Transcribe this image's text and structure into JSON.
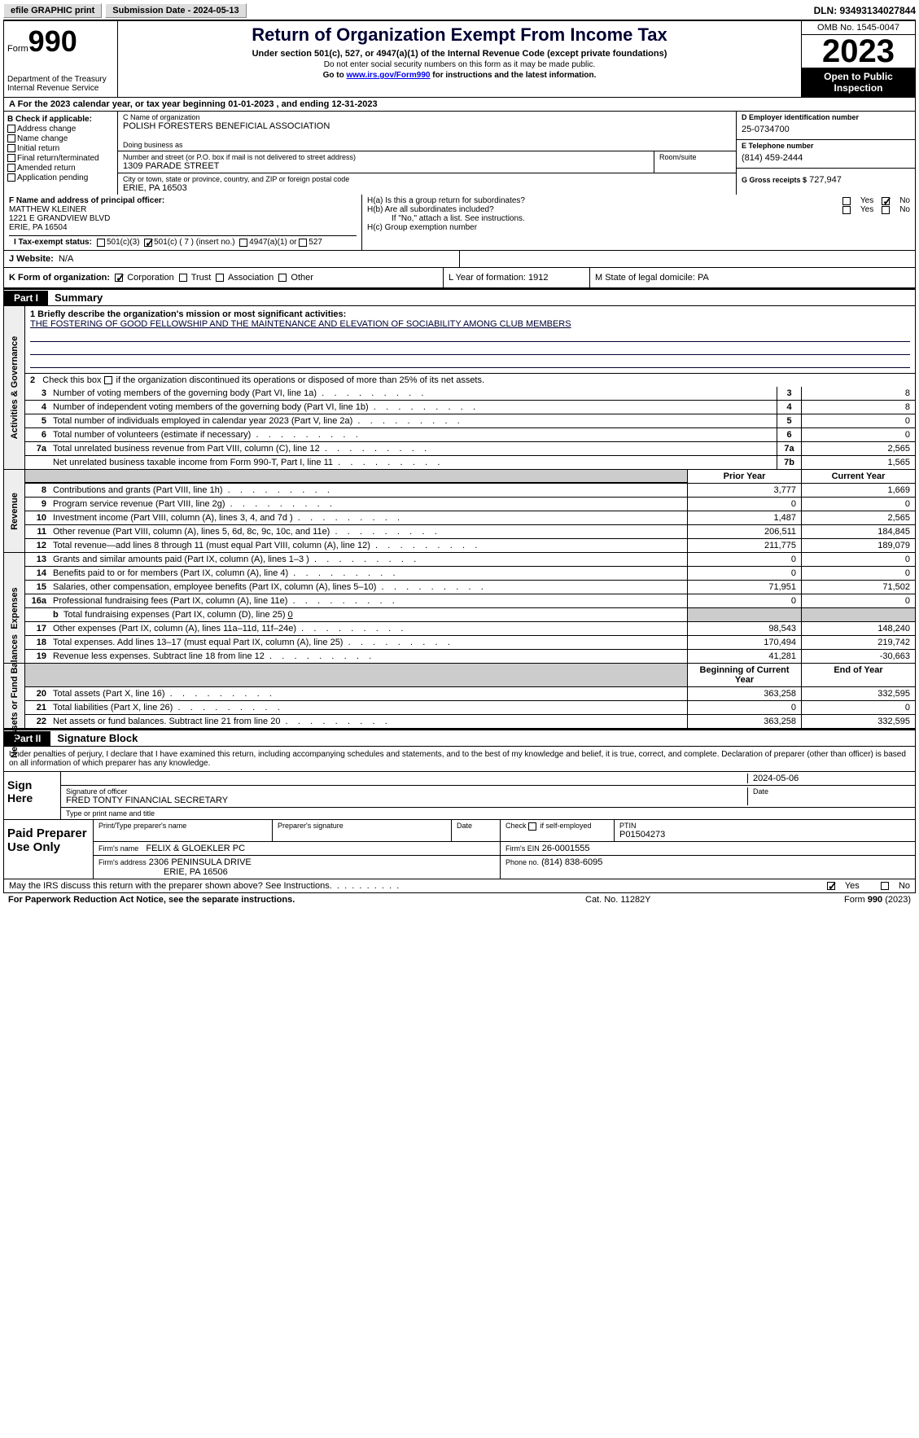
{
  "topbar": {
    "efile": "efile GRAPHIC print",
    "sub_date_label": "Submission Date - 2024-05-13",
    "dln": "DLN: 93493134027844"
  },
  "header": {
    "form_word": "Form",
    "form_no": "990",
    "dept": "Department of the Treasury\nInternal Revenue Service",
    "title": "Return of Organization Exempt From Income Tax",
    "sub": "Under section 501(c), 527, or 4947(a)(1) of the Internal Revenue Code (except private foundations)",
    "note1": "Do not enter social security numbers on this form as it may be made public.",
    "note2_pre": "Go to ",
    "note2_link": "www.irs.gov/Form990",
    "note2_post": " for instructions and the latest information.",
    "omb": "OMB No. 1545-0047",
    "year": "2023",
    "inspect": "Open to Public Inspection"
  },
  "row_a": "A For the 2023 calendar year, or tax year beginning 01-01-2023    , and ending 12-31-2023",
  "col_b": {
    "lbl": "B Check if applicable:",
    "items": [
      "Address change",
      "Name change",
      "Initial return",
      "Final return/terminated",
      "Amended return",
      "Application pending"
    ]
  },
  "col_c": {
    "name_lbl": "C Name of organization",
    "name": "POLISH FORESTERS BENEFICIAL ASSOCIATION",
    "dba_lbl": "Doing business as",
    "addr_lbl": "Number and street (or P.O. box if mail is not delivered to street address)",
    "addr": "1309 PARADE STREET",
    "room_lbl": "Room/suite",
    "city_lbl": "City or town, state or province, country, and ZIP or foreign postal code",
    "city": "ERIE, PA  16503"
  },
  "col_d": {
    "ein_lbl": "D Employer identification number",
    "ein": "25-0734700",
    "tel_lbl": "E Telephone number",
    "tel": "(814) 459-2444",
    "gross_lbl": "G Gross receipts $",
    "gross": "727,947"
  },
  "officer": {
    "lbl": "F  Name and address of principal officer:",
    "name": "MATTHEW KLEINER",
    "addr1": "1221 E GRANDVIEW BLVD",
    "addr2": "ERIE, PA  16504"
  },
  "ha": {
    "a_lbl": "H(a)  Is this a group return for subordinates?",
    "b_lbl": "H(b)  Are all subordinates included?",
    "b_note": "If \"No,\" attach a list. See instructions.",
    "c_lbl": "H(c)  Group exemption number"
  },
  "tax_status": {
    "lbl": "I    Tax-exempt status:",
    "o1": "501(c)(3)",
    "o2": "501(c) ( 7 ) (insert no.)",
    "o3": "4947(a)(1) or",
    "o4": "527"
  },
  "website": {
    "lbl": "J    Website:",
    "val": "N/A"
  },
  "kform": {
    "lbl": "K Form of organization:",
    "opts": [
      "Corporation",
      "Trust",
      "Association",
      "Other"
    ],
    "l": "L Year of formation: 1912",
    "m": "M State of legal domicile: PA"
  },
  "part1": {
    "tab": "Part I",
    "title": "Summary"
  },
  "summary": {
    "line1_lbl": "1   Briefly describe the organization's mission or most significant activities:",
    "line1_text": "THE FOSTERING OF GOOD FELLOWSHIP AND THE MAINTENANCE AND ELEVATION OF SOCIABILITY AMONG CLUB MEMBERS",
    "line2": "2    Check this box        if the organization discontinued its operations or disposed of more than 25% of its net assets.",
    "gov": [
      {
        "n": "3",
        "d": "Number of voting members of the governing body (Part VI, line 1a)",
        "b": "3",
        "v": "8"
      },
      {
        "n": "4",
        "d": "Number of independent voting members of the governing body (Part VI, line 1b)",
        "b": "4",
        "v": "8"
      },
      {
        "n": "5",
        "d": "Total number of individuals employed in calendar year 2023 (Part V, line 2a)",
        "b": "5",
        "v": "0"
      },
      {
        "n": "6",
        "d": "Total number of volunteers (estimate if necessary)",
        "b": "6",
        "v": "0"
      },
      {
        "n": "7a",
        "d": "Total unrelated business revenue from Part VIII, column (C), line 12",
        "b": "7a",
        "v": "2,565"
      },
      {
        "n": "",
        "d": "Net unrelated business taxable income from Form 990-T, Part I, line 11",
        "b": "7b",
        "v": "1,565"
      }
    ],
    "prior": "Prior Year",
    "current": "Current Year",
    "rev": [
      {
        "n": "8",
        "d": "Contributions and grants (Part VIII, line 1h)",
        "p": "3,777",
        "c": "1,669"
      },
      {
        "n": "9",
        "d": "Program service revenue (Part VIII, line 2g)",
        "p": "0",
        "c": "0"
      },
      {
        "n": "10",
        "d": "Investment income (Part VIII, column (A), lines 3, 4, and 7d )",
        "p": "1,487",
        "c": "2,565"
      },
      {
        "n": "11",
        "d": "Other revenue (Part VIII, column (A), lines 5, 6d, 8c, 9c, 10c, and 11e)",
        "p": "206,511",
        "c": "184,845"
      },
      {
        "n": "12",
        "d": "Total revenue—add lines 8 through 11 (must equal Part VIII, column (A), line 12)",
        "p": "211,775",
        "c": "189,079"
      }
    ],
    "exp": [
      {
        "n": "13",
        "d": "Grants and similar amounts paid (Part IX, column (A), lines 1–3 )",
        "p": "0",
        "c": "0"
      },
      {
        "n": "14",
        "d": "Benefits paid to or for members (Part IX, column (A), line 4)",
        "p": "0",
        "c": "0"
      },
      {
        "n": "15",
        "d": "Salaries, other compensation, employee benefits (Part IX, column (A), lines 5–10)",
        "p": "71,951",
        "c": "71,502"
      },
      {
        "n": "16a",
        "d": "Professional fundraising fees (Part IX, column (A), line 11e)",
        "p": "0",
        "c": "0"
      }
    ],
    "line16b": "b   Total fundraising expenses (Part IX, column (D), line 25) 0",
    "exp2": [
      {
        "n": "17",
        "d": "Other expenses (Part IX, column (A), lines 11a–11d, 11f–24e)",
        "p": "98,543",
        "c": "148,240"
      },
      {
        "n": "18",
        "d": "Total expenses. Add lines 13–17 (must equal Part IX, column (A), line 25)",
        "p": "170,494",
        "c": "219,742"
      },
      {
        "n": "19",
        "d": "Revenue less expenses. Subtract line 18 from line 12",
        "p": "41,281",
        "c": "-30,663"
      }
    ],
    "begin": "Beginning of Current Year",
    "end": "End of Year",
    "net": [
      {
        "n": "20",
        "d": "Total assets (Part X, line 16)",
        "p": "363,258",
        "c": "332,595"
      },
      {
        "n": "21",
        "d": "Total liabilities (Part X, line 26)",
        "p": "0",
        "c": "0"
      },
      {
        "n": "22",
        "d": "Net assets or fund balances. Subtract line 21 from line 20",
        "p": "363,258",
        "c": "332,595"
      }
    ]
  },
  "part2": {
    "tab": "Part II",
    "title": "Signature Block"
  },
  "sig_text": "Under penalties of perjury, I declare that I have examined this return, including accompanying schedules and statements, and to the best of my knowledge and belief, it is true, correct, and complete. Declaration of preparer (other than officer) is based on all information of which preparer has any knowledge.",
  "sign": {
    "left": "Sign Here",
    "sig_lbl": "Signature of officer",
    "name": "FRED TONTY FINANCIAL SECRETARY",
    "type_lbl": "Type or print name and title",
    "date_lbl": "Date",
    "date": "2024-05-06"
  },
  "paid": {
    "left": "Paid Preparer Use Only",
    "h1": "Print/Type preparer's name",
    "h2": "Preparer's signature",
    "h3": "Date",
    "h4": "Check        if self-employed",
    "h5_lbl": "PTIN",
    "h5": "P01504273",
    "firm_lbl": "Firm's name",
    "firm": "FELIX & GLOEKLER PC",
    "ein_lbl": "Firm's EIN",
    "ein": "26-0001555",
    "addr_lbl": "Firm's address",
    "addr1": "2306 PENINSULA DRIVE",
    "addr2": "ERIE, PA  16506",
    "phone_lbl": "Phone no.",
    "phone": "(814) 838-6095"
  },
  "discuss": "May the IRS discuss this return with the preparer shown above? See Instructions.",
  "footer": {
    "left": "For Paperwork Reduction Act Notice, see the separate instructions.",
    "mid": "Cat. No. 11282Y",
    "right_pre": "Form ",
    "right_form": "990",
    "right_post": " (2023)"
  },
  "yn": {
    "yes": "Yes",
    "no": "No"
  }
}
